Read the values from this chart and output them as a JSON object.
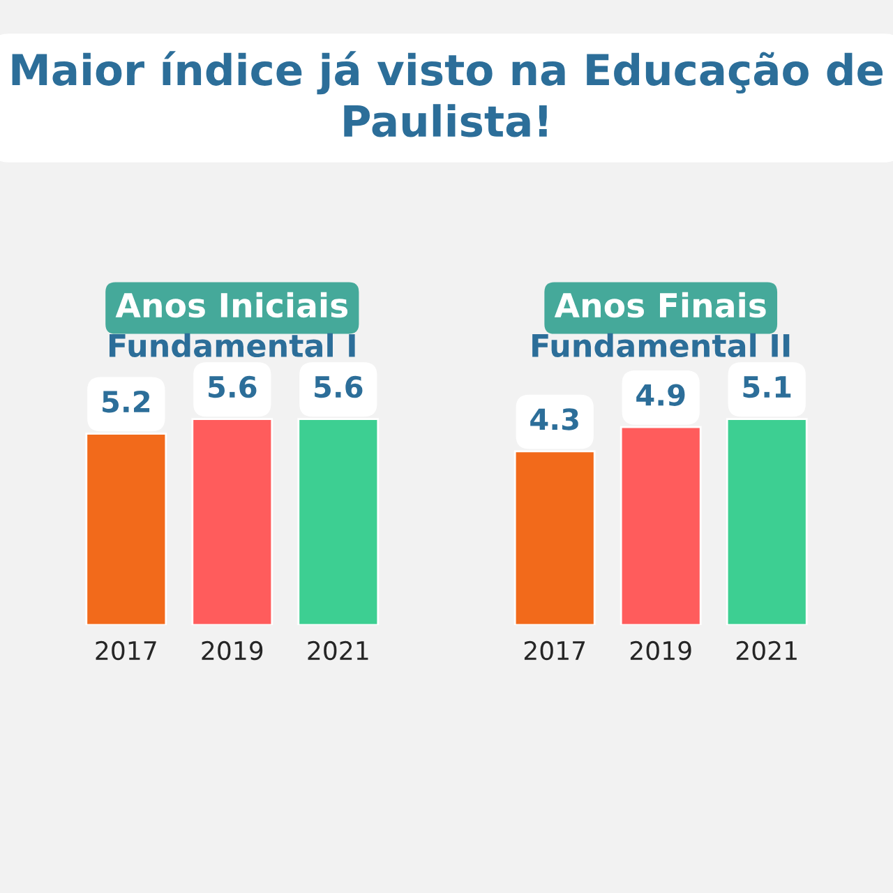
{
  "chart_data": [
    {
      "type": "bar",
      "annotations": [
        "Maior índice já visto na Educação de Paulista!"
      ],
      "title": "Anos Iniciais",
      "subtitle": "Fundamental I",
      "categories": [
        "2017",
        "2019",
        "2021"
      ],
      "values": [
        5.2,
        5.6,
        5.6
      ],
      "colors": [
        "#f26a1b",
        "#ff5c5c",
        "#3dcf92"
      ],
      "data_labels": true,
      "tick_labels": "x"
    },
    {
      "type": "bar",
      "title": "Anos Finais",
      "subtitle": "Fundamental II",
      "categories": [
        "2017",
        "2019",
        "2021"
      ],
      "values": [
        4.3,
        4.9,
        5.1
      ],
      "colors": [
        "#f26a1b",
        "#ff5c5c",
        "#3dcf92"
      ],
      "data_labels": true,
      "tick_labels": "x"
    }
  ]
}
